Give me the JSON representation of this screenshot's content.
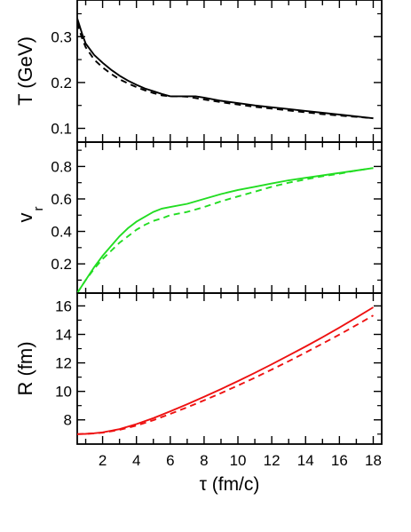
{
  "chart_data": [
    {
      "type": "line",
      "ylabel": "T (GeV)",
      "ylim": [
        0.07,
        0.38
      ],
      "yticks": [
        0.1,
        0.2,
        0.3
      ],
      "ytick_labels": [
        "0.1",
        "0.2",
        "0.3"
      ],
      "xlim": [
        0.5,
        18.5
      ],
      "color": "#000000",
      "series": [
        {
          "style": "solid",
          "x": [
            0.5,
            0.8,
            1.0,
            1.5,
            2.0,
            2.5,
            3.0,
            3.5,
            4.0,
            4.5,
            5.0,
            5.5,
            6.0,
            6.5,
            7.0,
            7.5,
            8.0,
            9.0,
            10.0,
            11.0,
            12.0,
            13.0,
            14.0,
            15.0,
            16.0,
            17.0,
            18.0
          ],
          "y": [
            0.34,
            0.305,
            0.285,
            0.26,
            0.243,
            0.228,
            0.215,
            0.204,
            0.195,
            0.187,
            0.181,
            0.175,
            0.17,
            0.17,
            0.17,
            0.17,
            0.167,
            0.16,
            0.155,
            0.15,
            0.146,
            0.142,
            0.138,
            0.134,
            0.13,
            0.126,
            0.122
          ]
        },
        {
          "style": "dashed",
          "x": [
            0.5,
            0.8,
            1.0,
            1.5,
            2.0,
            2.5,
            3.0,
            3.5,
            4.0,
            4.5,
            5.0,
            5.5,
            6.0,
            6.5,
            7.0,
            7.5,
            8.0,
            9.0,
            10.0,
            11.0,
            12.0,
            13.0,
            14.0,
            15.0,
            16.0,
            17.0,
            18.0
          ],
          "y": [
            0.33,
            0.295,
            0.277,
            0.25,
            0.233,
            0.219,
            0.207,
            0.198,
            0.19,
            0.183,
            0.177,
            0.172,
            0.17,
            0.17,
            0.169,
            0.166,
            0.163,
            0.157,
            0.152,
            0.147,
            0.143,
            0.139,
            0.135,
            0.131,
            0.128,
            0.125,
            0.122
          ]
        }
      ]
    },
    {
      "type": "line",
      "ylabel": "v",
      "ylabel_sub": "r",
      "ylim": [
        0.02,
        0.95
      ],
      "yticks": [
        0.2,
        0.4,
        0.6,
        0.8
      ],
      "ytick_labels": [
        "0.2",
        "0.4",
        "0.6",
        "0.8"
      ],
      "xlim": [
        0.5,
        18.5
      ],
      "color": "#22dd22",
      "series": [
        {
          "style": "solid",
          "x": [
            0.5,
            1.0,
            1.5,
            2.0,
            2.5,
            3.0,
            3.5,
            4.0,
            4.5,
            5.0,
            5.5,
            6.0,
            7.0,
            8.0,
            9.0,
            10.0,
            11.0,
            12.0,
            13.0,
            14.0,
            15.0,
            16.0,
            17.0,
            18.0
          ],
          "y": [
            0.02,
            0.1,
            0.18,
            0.25,
            0.31,
            0.37,
            0.42,
            0.46,
            0.49,
            0.52,
            0.54,
            0.55,
            0.57,
            0.6,
            0.63,
            0.655,
            0.675,
            0.695,
            0.715,
            0.73,
            0.745,
            0.76,
            0.775,
            0.79
          ]
        },
        {
          "style": "dashed",
          "x": [
            0.5,
            1.0,
            1.5,
            2.0,
            2.5,
            3.0,
            3.5,
            4.0,
            4.5,
            5.0,
            5.5,
            6.0,
            7.0,
            8.0,
            9.0,
            10.0,
            11.0,
            12.0,
            13.0,
            14.0,
            15.0,
            16.0,
            17.0,
            18.0
          ],
          "y": [
            0.02,
            0.1,
            0.17,
            0.23,
            0.28,
            0.33,
            0.37,
            0.41,
            0.44,
            0.465,
            0.48,
            0.5,
            0.52,
            0.55,
            0.585,
            0.615,
            0.645,
            0.675,
            0.7,
            0.72,
            0.74,
            0.755,
            0.775,
            0.79
          ]
        }
      ]
    },
    {
      "type": "line",
      "ylabel": "R (fm)",
      "ylim": [
        6.3,
        16.9
      ],
      "yticks": [
        8,
        10,
        12,
        14,
        16
      ],
      "ytick_labels": [
        "8",
        "10",
        "12",
        "14",
        "16"
      ],
      "xlim": [
        0.5,
        18.5
      ],
      "xticks": [
        2,
        4,
        6,
        8,
        10,
        12,
        14,
        16,
        18
      ],
      "xtick_labels": [
        "2",
        "4",
        "6",
        "8",
        "10",
        "12",
        "14",
        "16",
        "18"
      ],
      "xlabel": "τ (fm/c)",
      "color": "#ee1111",
      "series": [
        {
          "style": "solid",
          "x": [
            0.5,
            1.0,
            1.5,
            2.0,
            3.0,
            4.0,
            5.0,
            6.0,
            7.0,
            8.0,
            9.0,
            10.0,
            11.0,
            12.0,
            13.0,
            14.0,
            15.0,
            16.0,
            17.0,
            18.0
          ],
          "y": [
            7.0,
            7.02,
            7.06,
            7.12,
            7.35,
            7.7,
            8.12,
            8.6,
            9.1,
            9.62,
            10.16,
            10.72,
            11.3,
            11.9,
            12.52,
            13.15,
            13.8,
            14.48,
            15.18,
            15.9
          ]
        },
        {
          "style": "dashed",
          "x": [
            0.5,
            1.0,
            1.5,
            2.0,
            3.0,
            4.0,
            5.0,
            6.0,
            7.0,
            8.0,
            9.0,
            10.0,
            11.0,
            12.0,
            13.0,
            14.0,
            15.0,
            16.0,
            17.0,
            18.0
          ],
          "y": [
            7.0,
            7.02,
            7.05,
            7.1,
            7.3,
            7.6,
            7.98,
            8.42,
            8.88,
            9.37,
            9.88,
            10.41,
            10.96,
            11.53,
            12.12,
            12.73,
            13.35,
            13.99,
            14.65,
            15.33
          ]
        }
      ]
    }
  ]
}
